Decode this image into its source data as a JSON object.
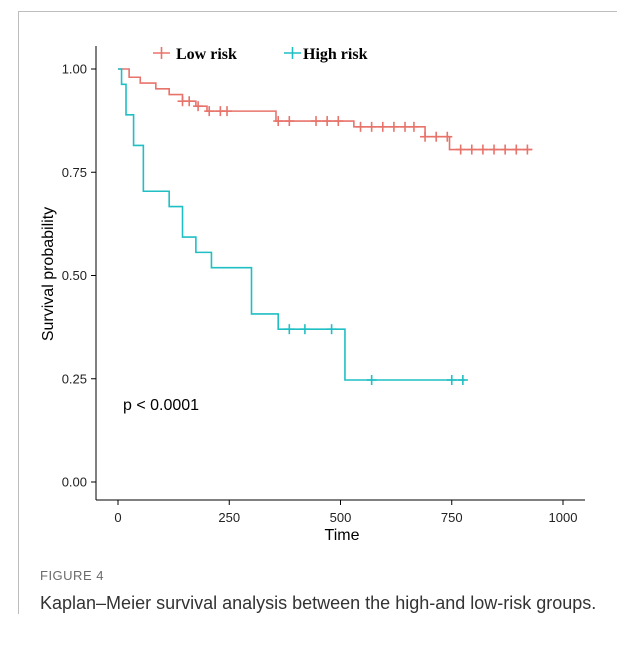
{
  "figure": {
    "label": "FIGURE 4",
    "caption": "Kaplan–Meier survival analysis between the high-and low-risk groups."
  },
  "chart_data": {
    "type": "line",
    "subtype": "kaplan-meier step",
    "xlabel": "Time",
    "ylabel": "Survival probability",
    "xlim": [
      0,
      1000
    ],
    "ylim": [
      0,
      1
    ],
    "xticks": [
      "0",
      "250",
      "500",
      "750",
      "1000"
    ],
    "yticks": [
      "0.00",
      "0.25",
      "0.50",
      "0.75",
      "1.00"
    ],
    "annotation": "p < 0.0001",
    "grid": false,
    "legend_position": "top",
    "series": [
      {
        "name": "Low risk",
        "color": "#e8736a",
        "steps": [
          [
            0,
            1.0
          ],
          [
            25,
            0.98
          ],
          [
            50,
            0.966
          ],
          [
            85,
            0.952
          ],
          [
            115,
            0.938
          ],
          [
            145,
            0.922
          ],
          [
            175,
            0.91
          ],
          [
            200,
            0.898
          ],
          [
            355,
            0.874
          ],
          [
            530,
            0.86
          ],
          [
            690,
            0.836
          ],
          [
            745,
            0.805
          ],
          [
            930,
            0.805
          ]
        ],
        "censor_times": [
          145,
          160,
          180,
          205,
          230,
          245,
          360,
          385,
          445,
          470,
          495,
          545,
          570,
          595,
          620,
          645,
          665,
          690,
          715,
          740,
          770,
          795,
          820,
          845,
          870,
          895,
          920
        ]
      },
      {
        "name": "High risk",
        "color": "#1fbfc4",
        "steps": [
          [
            0,
            1.0
          ],
          [
            8,
            0.963
          ],
          [
            18,
            0.889
          ],
          [
            35,
            0.815
          ],
          [
            57,
            0.704
          ],
          [
            115,
            0.667
          ],
          [
            145,
            0.593
          ],
          [
            175,
            0.556
          ],
          [
            210,
            0.519
          ],
          [
            300,
            0.407
          ],
          [
            360,
            0.37
          ],
          [
            510,
            0.247
          ],
          [
            780,
            0.247
          ]
        ],
        "censor_times": [
          385,
          420,
          480,
          570,
          750,
          775
        ]
      }
    ]
  }
}
